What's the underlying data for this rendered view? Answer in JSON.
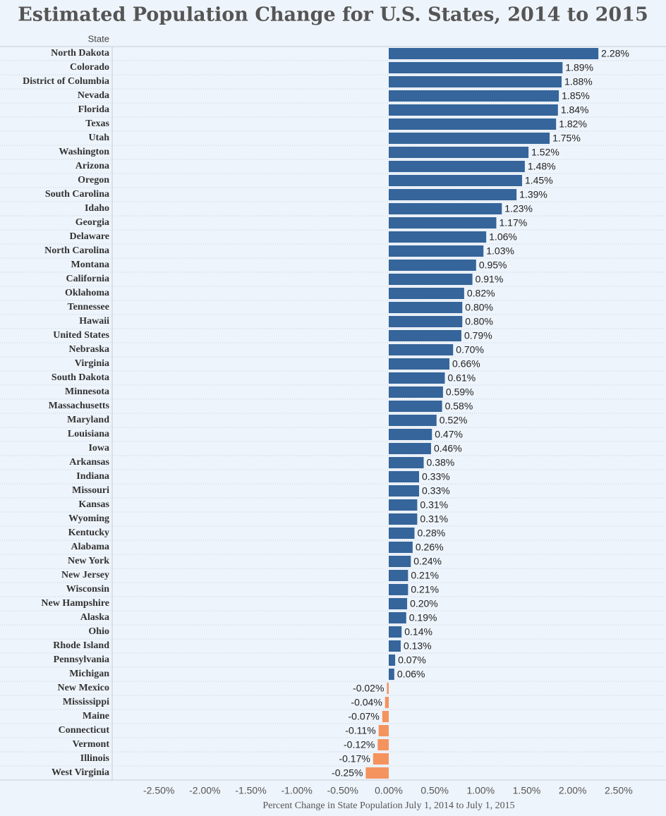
{
  "chart_data": {
    "type": "bar",
    "orientation": "horizontal",
    "title": "Estimated Population Change for U.S. States, 2014 to 2015",
    "y_label": "State",
    "x_label": "Percent Change in State Population July 1, 2014 to July 1, 2015",
    "categories": [
      "North Dakota",
      "Colorado",
      "District of Columbia",
      "Nevada",
      "Florida",
      "Texas",
      "Utah",
      "Washington",
      "Arizona",
      "Oregon",
      "South Carolina",
      "Idaho",
      "Georgia",
      "Delaware",
      "North Carolina",
      "Montana",
      "California",
      "Oklahoma",
      "Tennessee",
      "Hawaii",
      "United States",
      "Nebraska",
      "Virginia",
      "South Dakota",
      "Minnesota",
      "Massachusetts",
      "Maryland",
      "Louisiana",
      "Iowa",
      "Arkansas",
      "Indiana",
      "Missouri",
      "Kansas",
      "Wyoming",
      "Kentucky",
      "Alabama",
      "New York",
      "New Jersey",
      "Wisconsin",
      "New Hampshire",
      "Alaska",
      "Ohio",
      "Rhode Island",
      "Pennsylvania",
      "Michigan",
      "New Mexico",
      "Mississippi",
      "Maine",
      "Connecticut",
      "Vermont",
      "Illinois",
      "West Virginia"
    ],
    "values": [
      2.28,
      1.89,
      1.88,
      1.85,
      1.84,
      1.82,
      1.75,
      1.52,
      1.48,
      1.45,
      1.39,
      1.23,
      1.17,
      1.06,
      1.03,
      0.95,
      0.91,
      0.82,
      0.8,
      0.8,
      0.79,
      0.7,
      0.66,
      0.61,
      0.59,
      0.58,
      0.52,
      0.47,
      0.46,
      0.38,
      0.33,
      0.33,
      0.31,
      0.31,
      0.28,
      0.26,
      0.24,
      0.21,
      0.21,
      0.2,
      0.19,
      0.14,
      0.13,
      0.07,
      0.06,
      -0.02,
      -0.04,
      -0.07,
      -0.11,
      -0.12,
      -0.17,
      -0.25
    ],
    "value_labels": [
      "2.28%",
      "1.89%",
      "1.88%",
      "1.85%",
      "1.84%",
      "1.82%",
      "1.75%",
      "1.52%",
      "1.48%",
      "1.45%",
      "1.39%",
      "1.23%",
      "1.17%",
      "1.06%",
      "1.03%",
      "0.95%",
      "0.91%",
      "0.82%",
      "0.80%",
      "0.80%",
      "0.79%",
      "0.70%",
      "0.66%",
      "0.61%",
      "0.59%",
      "0.58%",
      "0.52%",
      "0.47%",
      "0.46%",
      "0.38%",
      "0.33%",
      "0.33%",
      "0.31%",
      "0.31%",
      "0.28%",
      "0.26%",
      "0.24%",
      "0.21%",
      "0.21%",
      "0.20%",
      "0.19%",
      "0.14%",
      "0.13%",
      "0.07%",
      "0.06%",
      "-0.02%",
      "-0.04%",
      "-0.07%",
      "-0.11%",
      "-0.12%",
      "-0.17%",
      "-0.25%"
    ],
    "color": "#35659a",
    "negative_color": "#f4935e",
    "xlim": [
      -3,
      3
    ],
    "xticks": [
      {
        "value": -2.5,
        "label": "-2.50%"
      },
      {
        "value": -2,
        "label": "-2.00%"
      },
      {
        "value": -1.5,
        "label": "-1.50%"
      },
      {
        "value": -1,
        "label": "-1.00%"
      },
      {
        "value": -0.5,
        "label": "-0.50%"
      },
      {
        "value": 0,
        "label": "0.00%"
      },
      {
        "value": 0.5,
        "label": "0.50%"
      },
      {
        "value": 1,
        "label": "1.00%"
      },
      {
        "value": 1.5,
        "label": "1.50%"
      },
      {
        "value": 2,
        "label": "2.00%"
      },
      {
        "value": 2.5,
        "label": "2.50%"
      }
    ],
    "grid": false
  }
}
